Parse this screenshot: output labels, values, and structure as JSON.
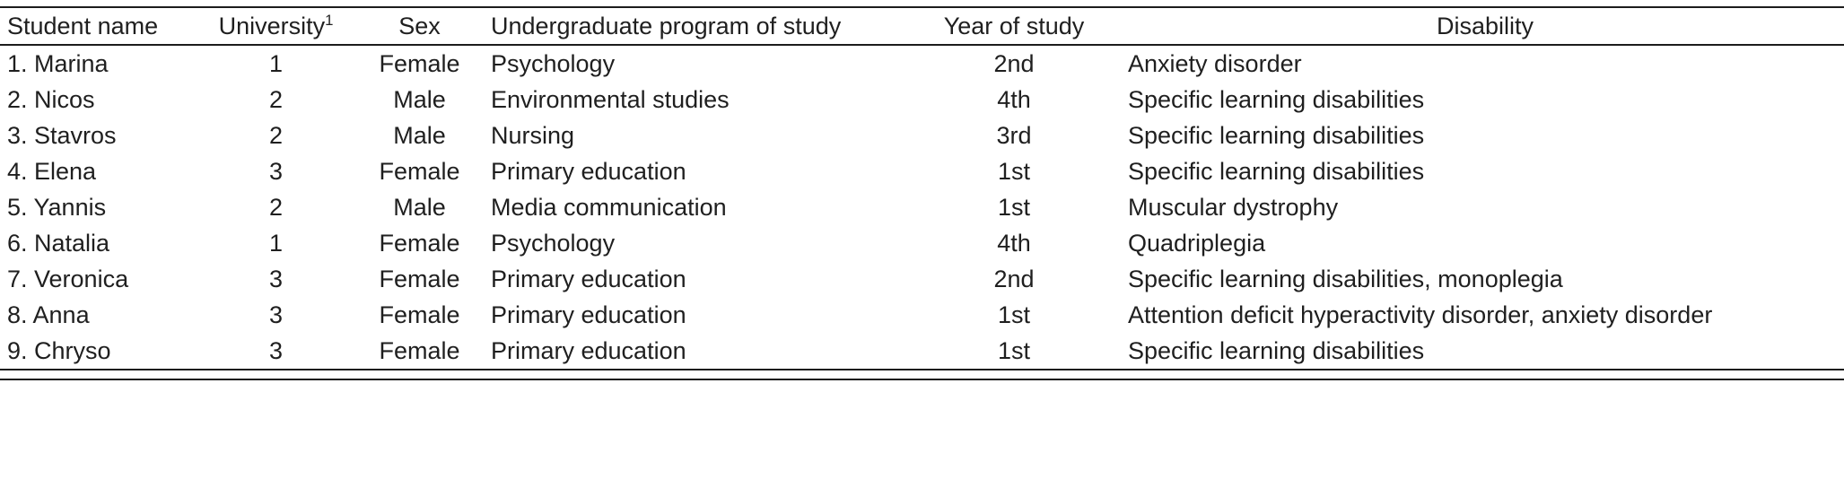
{
  "table": {
    "columns": {
      "student_name": "Student name",
      "university": "University",
      "university_footnote": "1",
      "sex": "Sex",
      "program": "Undergraduate program of study",
      "year": "Year of study",
      "disability": "Disability"
    },
    "rows": [
      {
        "name": "1. Marina",
        "university": "1",
        "sex": "Female",
        "program": "Psychology",
        "year": "2nd",
        "disability": "Anxiety disorder"
      },
      {
        "name": "2. Nicos",
        "university": "2",
        "sex": "Male",
        "program": "Environmental studies",
        "year": "4th",
        "disability": "Specific learning disabilities"
      },
      {
        "name": "3. Stavros",
        "university": "2",
        "sex": "Male",
        "program": "Nursing",
        "year": "3rd",
        "disability": "Specific learning disabilities"
      },
      {
        "name": "4. Elena",
        "university": "3",
        "sex": "Female",
        "program": "Primary education",
        "year": "1st",
        "disability": "Specific learning disabilities"
      },
      {
        "name": "5. Yannis",
        "university": "2",
        "sex": "Male",
        "program": "Media communication",
        "year": "1st",
        "disability": "Muscular dystrophy"
      },
      {
        "name": "6. Natalia",
        "university": "1",
        "sex": "Female",
        "program": "Psychology",
        "year": "4th",
        "disability": "Quadriplegia"
      },
      {
        "name": "7. Veronica",
        "university": "3",
        "sex": "Female",
        "program": "Primary education",
        "year": "2nd",
        "disability": "Specific learning disabilities, monoplegia"
      },
      {
        "name": "8. Anna",
        "university": "3",
        "sex": "Female",
        "program": "Primary education",
        "year": "1st",
        "disability": "Attention deficit hyperactivity disorder, anxiety disorder"
      },
      {
        "name": "9. Chryso",
        "university": "3",
        "sex": "Female",
        "program": "Primary education",
        "year": "1st",
        "disability": "Specific learning disabilities"
      }
    ]
  },
  "colors": {
    "rule": "#1c1c1c",
    "text": "#1f1f1f",
    "background": "#ffffff"
  }
}
